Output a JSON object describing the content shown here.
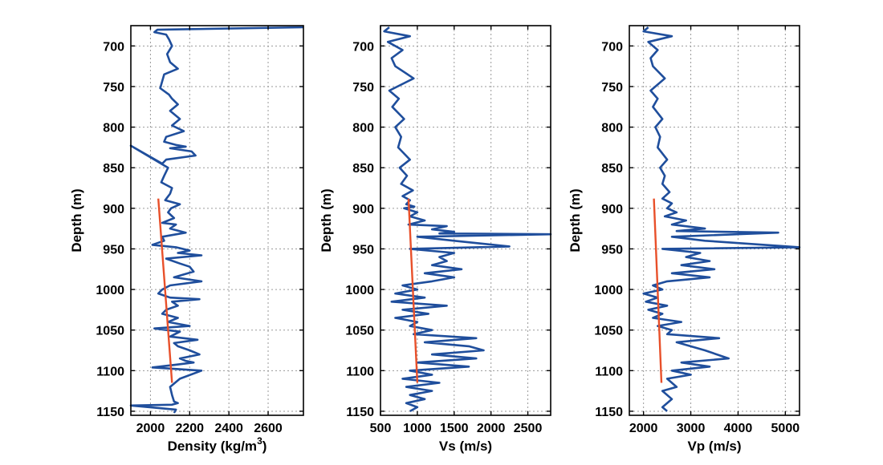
{
  "colors": {
    "log_curve": "#1f4e9c",
    "trend_line": "#e8502a",
    "grid": "#9a9a9a",
    "axes": "#000000"
  },
  "chart_data": [
    {
      "type": "line",
      "xlabel": "Density (kg/m",
      "xlabel_superscript": "3",
      "xlabel_close": ")",
      "ylabel": "Depth (m)",
      "xlim": [
        1900,
        2780
      ],
      "ylim": [
        1155,
        675
      ],
      "y_inverted": true,
      "x_ticks": [
        2000,
        2200,
        2400,
        2600
      ],
      "y_ticks": [
        700,
        750,
        800,
        850,
        900,
        950,
        1000,
        1050,
        1100,
        1150
      ],
      "grid": true,
      "series": [
        {
          "x": [
            2780,
            2035,
            2020,
            2080,
            2095,
            2110,
            2085,
            2100,
            2140,
            2070,
            2050,
            2095,
            2110,
            2140,
            2100,
            2150,
            2110,
            2170,
            2080,
            2070,
            2130,
            2180,
            2100,
            2210,
            2230,
            2080,
            2060,
            1900,
            2090,
            2070,
            2055,
            2110,
            2100,
            2075,
            2150,
            2105,
            2090,
            2120,
            2060,
            2130,
            2100,
            2180,
            2060,
            2070,
            2010,
            2130,
            2200,
            2140,
            2260,
            2080,
            2150,
            2200,
            2220,
            2120,
            2260,
            2100,
            2060,
            2040,
            2100,
            2250,
            2110,
            2140,
            2080,
            2060,
            2140,
            2090,
            2200,
            2020,
            2150,
            2100,
            2240,
            2120,
            2140,
            2200,
            2250,
            2150,
            2180,
            2220,
            2120,
            2010,
            2260,
            2150,
            2100,
            2110,
            2120,
            2140,
            2110,
            1900,
            2130,
            2120
          ],
          "y": [
            677,
            680,
            683,
            686,
            692,
            700,
            710,
            720,
            728,
            735,
            752,
            760,
            765,
            772,
            780,
            790,
            798,
            805,
            812,
            818,
            822,
            824,
            826,
            830,
            835,
            840,
            845,
            823,
            850,
            860,
            868,
            875,
            882,
            890,
            895,
            900,
            905,
            912,
            918,
            920,
            925,
            930,
            935,
            940,
            945,
            948,
            952,
            955,
            958,
            962,
            968,
            972,
            978,
            985,
            990,
            995,
            1000,
            1005,
            1010,
            1012,
            1015,
            1020,
            1025,
            1030,
            1035,
            1040,
            1045,
            1048,
            1052,
            1058,
            1062,
            1066,
            1070,
            1075,
            1080,
            1085,
            1088,
            1090,
            1093,
            1096,
            1100,
            1110,
            1120,
            1130,
            1138,
            1140,
            1142,
            1143,
            1148,
            1152
          ]
        },
        {
          "x": [
            2040,
            2110
          ],
          "y": [
            888,
            1115
          ]
        }
      ]
    },
    {
      "type": "line",
      "xlabel": "Vs (m/s)",
      "ylabel": "Depth (m)",
      "xlim": [
        500,
        2810
      ],
      "ylim": [
        1155,
        675
      ],
      "y_inverted": true,
      "x_ticks": [
        500,
        1000,
        1500,
        2000,
        2500
      ],
      "y_ticks": [
        700,
        750,
        800,
        850,
        900,
        950,
        1000,
        1050,
        1100,
        1150
      ],
      "grid": true,
      "series": [
        {
          "x": [
            620,
            550,
            900,
            600,
            800,
            650,
            700,
            950,
            620,
            750,
            660,
            820,
            700,
            780,
            740,
            900,
            760,
            860,
            780,
            940,
            800,
            900,
            850,
            960,
            820,
            1000,
            900,
            1100,
            880,
            1400,
            1200,
            1500,
            1300,
            2810,
            1000,
            1500,
            2250,
            900,
            1500,
            1300,
            1400,
            1200,
            1600,
            1100,
            1500,
            1200,
            800,
            1000,
            700,
            1100,
            650,
            1400,
            800,
            1150,
            700,
            1000,
            900,
            1200,
            950,
            1800,
            1100,
            1700,
            1900,
            1200,
            1800,
            1000,
            1700,
            900,
            1200,
            800,
            1300,
            850,
            1200,
            900,
            1100,
            850,
            1000,
            900
          ],
          "y": [
            677,
            682,
            688,
            695,
            705,
            715,
            725,
            740,
            755,
            765,
            775,
            790,
            800,
            812,
            825,
            840,
            850,
            860,
            870,
            878,
            885,
            890,
            895,
            898,
            900,
            905,
            910,
            915,
            920,
            922,
            926,
            929,
            931,
            932,
            935,
            940,
            947,
            950,
            955,
            960,
            965,
            970,
            975,
            980,
            985,
            990,
            995,
            1000,
            1005,
            1010,
            1015,
            1020,
            1025,
            1030,
            1035,
            1040,
            1045,
            1050,
            1055,
            1060,
            1065,
            1070,
            1075,
            1080,
            1085,
            1090,
            1095,
            1100,
            1105,
            1110,
            1115,
            1120,
            1125,
            1130,
            1135,
            1140,
            1145,
            1150
          ]
        },
        {
          "x": [
            880,
            1000
          ],
          "y": [
            888,
            1115
          ]
        }
      ]
    },
    {
      "type": "line",
      "xlabel": "Vp (m/s)",
      "ylabel": "Depth (m)",
      "xlim": [
        1700,
        5300
      ],
      "ylim": [
        1155,
        675
      ],
      "y_inverted": true,
      "x_ticks": [
        2000,
        3000,
        4000,
        5000
      ],
      "y_ticks": [
        700,
        750,
        800,
        850,
        900,
        950,
        1000,
        1050,
        1100,
        1150
      ],
      "grid": true,
      "series": [
        {
          "x": [
            2100,
            2000,
            2600,
            2100,
            2300,
            2150,
            2200,
            2450,
            2150,
            2300,
            2200,
            2400,
            2250,
            2350,
            2300,
            2500,
            2350,
            2450,
            2400,
            2550,
            2400,
            2600,
            2500,
            2700,
            2450,
            2900,
            2600,
            3300,
            2700,
            4850,
            2600,
            3300,
            5300,
            2400,
            3200,
            2900,
            3400,
            2800,
            3500,
            2600,
            3400,
            2500,
            2200,
            2400,
            2000,
            2300,
            2050,
            2500,
            2100,
            2400,
            2200,
            2800,
            2300,
            2600,
            2500,
            3600,
            2700,
            3300,
            3800,
            2800,
            3400,
            2600,
            3000,
            2500,
            2700,
            2400,
            2600,
            2400,
            2500
          ],
          "y": [
            677,
            682,
            688,
            695,
            705,
            715,
            725,
            740,
            755,
            765,
            775,
            790,
            800,
            812,
            825,
            840,
            850,
            860,
            870,
            880,
            888,
            894,
            900,
            905,
            910,
            915,
            920,
            925,
            928,
            930,
            935,
            940,
            948,
            950,
            955,
            960,
            965,
            970,
            975,
            980,
            985,
            990,
            995,
            1000,
            1005,
            1010,
            1015,
            1020,
            1025,
            1030,
            1035,
            1040,
            1045,
            1050,
            1055,
            1060,
            1065,
            1075,
            1085,
            1090,
            1095,
            1100,
            1105,
            1110,
            1120,
            1125,
            1135,
            1145,
            1150
          ]
        },
        {
          "x": [
            2220,
            2380
          ],
          "y": [
            888,
            1115
          ]
        }
      ]
    }
  ]
}
